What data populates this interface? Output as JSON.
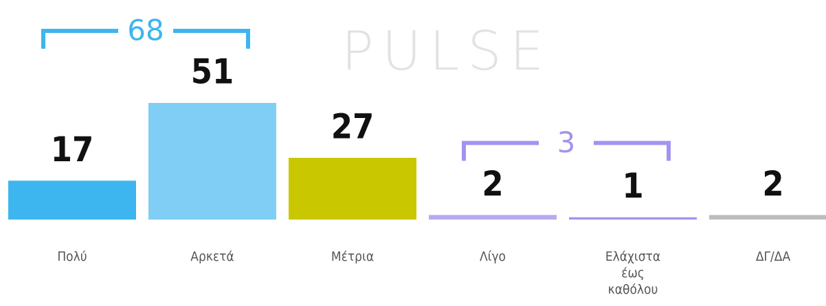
{
  "chart_data": {
    "type": "bar",
    "watermark": "PULSE",
    "categories": [
      "Πολύ",
      "Αρκετά",
      "Μέτρια",
      "Λίγο",
      "Ελάχιστα έως καθόλου",
      "ΔΓ/ΔΑ"
    ],
    "values": [
      17,
      51,
      27,
      2,
      1,
      2
    ],
    "colors": [
      "#3db5ee",
      "#80cdf6",
      "#c9c800",
      "#b9a9f0",
      "#a393f0",
      "#bdbdbd"
    ],
    "groups": [
      {
        "label": "68",
        "span": [
          0,
          1
        ],
        "color": "#3db5ee"
      },
      {
        "label": "3",
        "span": [
          3,
          4
        ],
        "color": "#a393f0"
      }
    ]
  }
}
